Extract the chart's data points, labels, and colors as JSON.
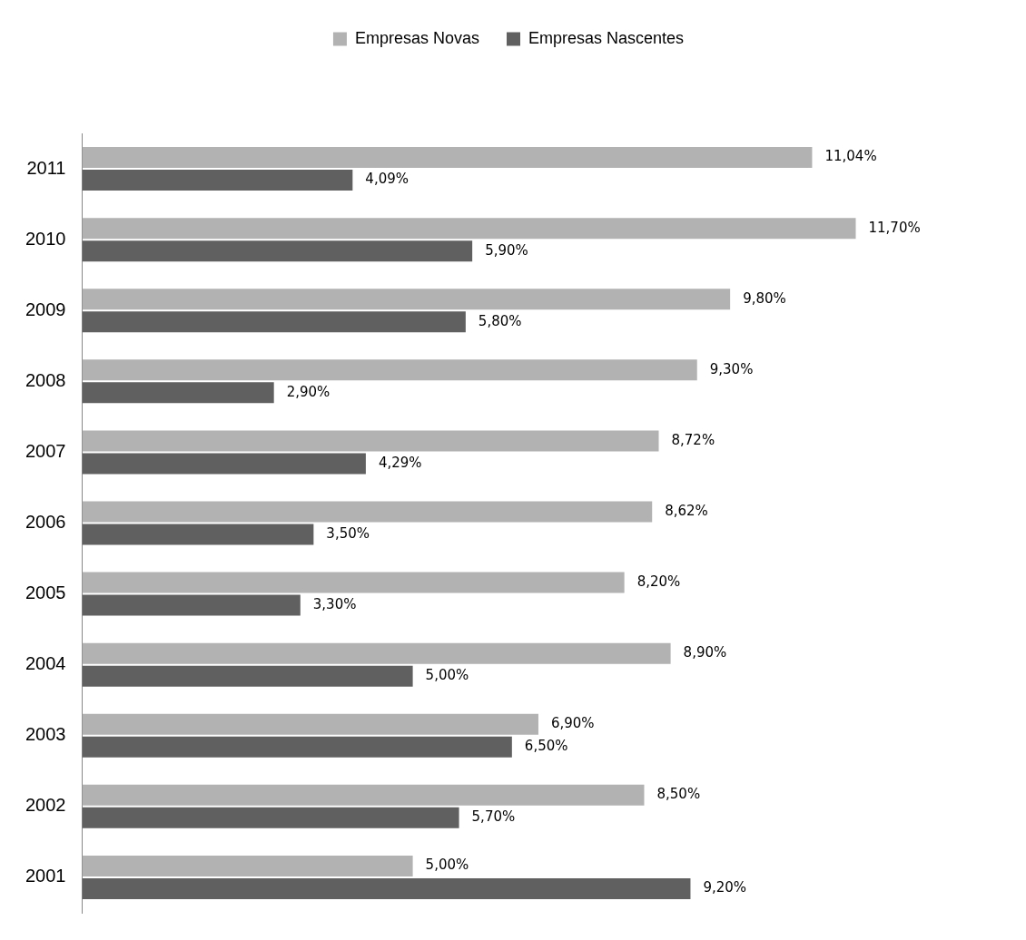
{
  "chart_data": {
    "type": "bar",
    "orientation": "horizontal",
    "categories": [
      "2011",
      "2010",
      "2009",
      "2008",
      "2007",
      "2006",
      "2005",
      "2004",
      "2003",
      "2002",
      "2001"
    ],
    "series": [
      {
        "name": "Empresas Novas",
        "color": "#b2b2b2",
        "values": [
          11.04,
          11.7,
          9.8,
          9.3,
          8.72,
          8.62,
          8.2,
          8.9,
          6.9,
          8.5,
          5.0
        ],
        "value_labels": [
          "11,04%",
          "11,70%",
          "9,80%",
          "9,30%",
          "8,72%",
          "8,62%",
          "8,20%",
          "8,90%",
          "6,90%",
          "8,50%",
          "5,00%"
        ]
      },
      {
        "name": "Empresas Nascentes",
        "color": "#606060",
        "values": [
          4.09,
          5.9,
          5.8,
          2.9,
          4.29,
          3.5,
          3.3,
          5.0,
          6.5,
          5.7,
          9.2
        ],
        "value_labels": [
          "4,09%",
          "5,90%",
          "5,80%",
          "2,90%",
          "4,29%",
          "3,50%",
          "3,30%",
          "5,00%",
          "6,50%",
          "5,70%",
          "9,20%"
        ]
      }
    ],
    "legend": "top",
    "grid": false,
    "tick_labels": "y"
  }
}
